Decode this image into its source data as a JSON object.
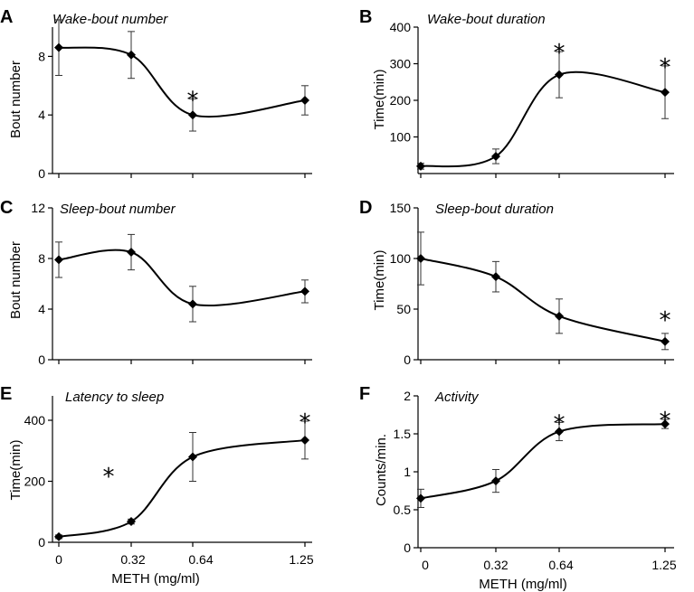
{
  "chart_data": [
    {
      "panel": "A",
      "type": "line",
      "title": "Wake-bout number",
      "xlabel": "",
      "ylabel": "Bout number",
      "x": [
        0,
        0.32,
        0.64,
        1.25
      ],
      "values": [
        8.6,
        8.1,
        4.0,
        5.0
      ],
      "error": [
        1.9,
        1.6,
        1.1,
        1.0
      ],
      "ylim": [
        0,
        10
      ],
      "yticks": [
        0,
        4,
        8
      ],
      "ytick_labels": [
        "0",
        "4",
        "8"
      ],
      "significant": [
        false,
        false,
        true,
        false
      ],
      "show_xtick_labels": false
    },
    {
      "panel": "B",
      "type": "line",
      "title": "Wake-bout duration",
      "xlabel": "",
      "ylabel": "Time(min)",
      "x": [
        0,
        0.32,
        0.64,
        1.25
      ],
      "values": [
        20,
        47,
        270,
        222
      ],
      "error": [
        8,
        20,
        63,
        72
      ],
      "ylim": [
        0,
        400
      ],
      "yticks": [
        100,
        200,
        300,
        400
      ],
      "ytick_labels": [
        "100",
        "200",
        "300",
        "400"
      ],
      "significant": [
        false,
        false,
        true,
        true
      ],
      "show_xtick_labels": false
    },
    {
      "panel": "C",
      "type": "line",
      "title": "Sleep-bout number",
      "xlabel": "",
      "ylabel": "Bout number",
      "x": [
        0,
        0.32,
        0.64,
        1.25
      ],
      "values": [
        7.9,
        8.5,
        4.4,
        5.4
      ],
      "error": [
        1.4,
        1.4,
        1.4,
        0.9
      ],
      "ylim": [
        0,
        12
      ],
      "yticks": [
        0,
        4,
        8,
        12
      ],
      "ytick_labels": [
        "0",
        "4",
        "8",
        "12"
      ],
      "significant": [
        false,
        false,
        false,
        false
      ],
      "show_xtick_labels": false
    },
    {
      "panel": "D",
      "type": "line",
      "title": "Sleep-bout duration",
      "xlabel": "",
      "ylabel": "Time(min)",
      "x": [
        0,
        0.32,
        0.64,
        1.25
      ],
      "values": [
        100,
        82,
        43,
        18
      ],
      "error": [
        26,
        15,
        17,
        8
      ],
      "ylim": [
        0,
        150
      ],
      "yticks": [
        0,
        50,
        100,
        150
      ],
      "ytick_labels": [
        "0",
        "50",
        "100",
        "150"
      ],
      "significant": [
        false,
        false,
        false,
        true
      ],
      "show_xtick_labels": false
    },
    {
      "panel": "E",
      "type": "line",
      "title": "Latency to sleep",
      "xlabel": "METH (mg/ml)",
      "ylabel": "Time(min)",
      "x": [
        0,
        0.32,
        0.64,
        1.25
      ],
      "values": [
        18,
        68,
        280,
        335
      ],
      "error": [
        6,
        8,
        80,
        62
      ],
      "ylim": [
        0,
        480
      ],
      "yticks": [
        0,
        200,
        400
      ],
      "ytick_labels": [
        "0",
        "200",
        "400"
      ],
      "significant": [
        false,
        true,
        false,
        true
      ],
      "show_xtick_labels": true
    },
    {
      "panel": "F",
      "type": "line",
      "title": "Activity",
      "xlabel": "METH (mg/ml)",
      "ylabel": "Counts/min.",
      "x": [
        0,
        0.32,
        0.64,
        1.25
      ],
      "values": [
        0.65,
        0.88,
        1.53,
        1.63
      ],
      "error": [
        0.12,
        0.15,
        0.12,
        0.06
      ],
      "ylim": [
        0,
        2
      ],
      "yticks": [
        0,
        0.5,
        1,
        1.5,
        2
      ],
      "ytick_labels": [
        "0",
        "0.5",
        "1",
        "1.5",
        "2"
      ],
      "significant": [
        false,
        false,
        true,
        true
      ],
      "show_xtick_labels": true
    }
  ],
  "x_tick_labels": [
    "0",
    "0.32",
    "0.64",
    "1.25"
  ],
  "significance_symbol": "*"
}
